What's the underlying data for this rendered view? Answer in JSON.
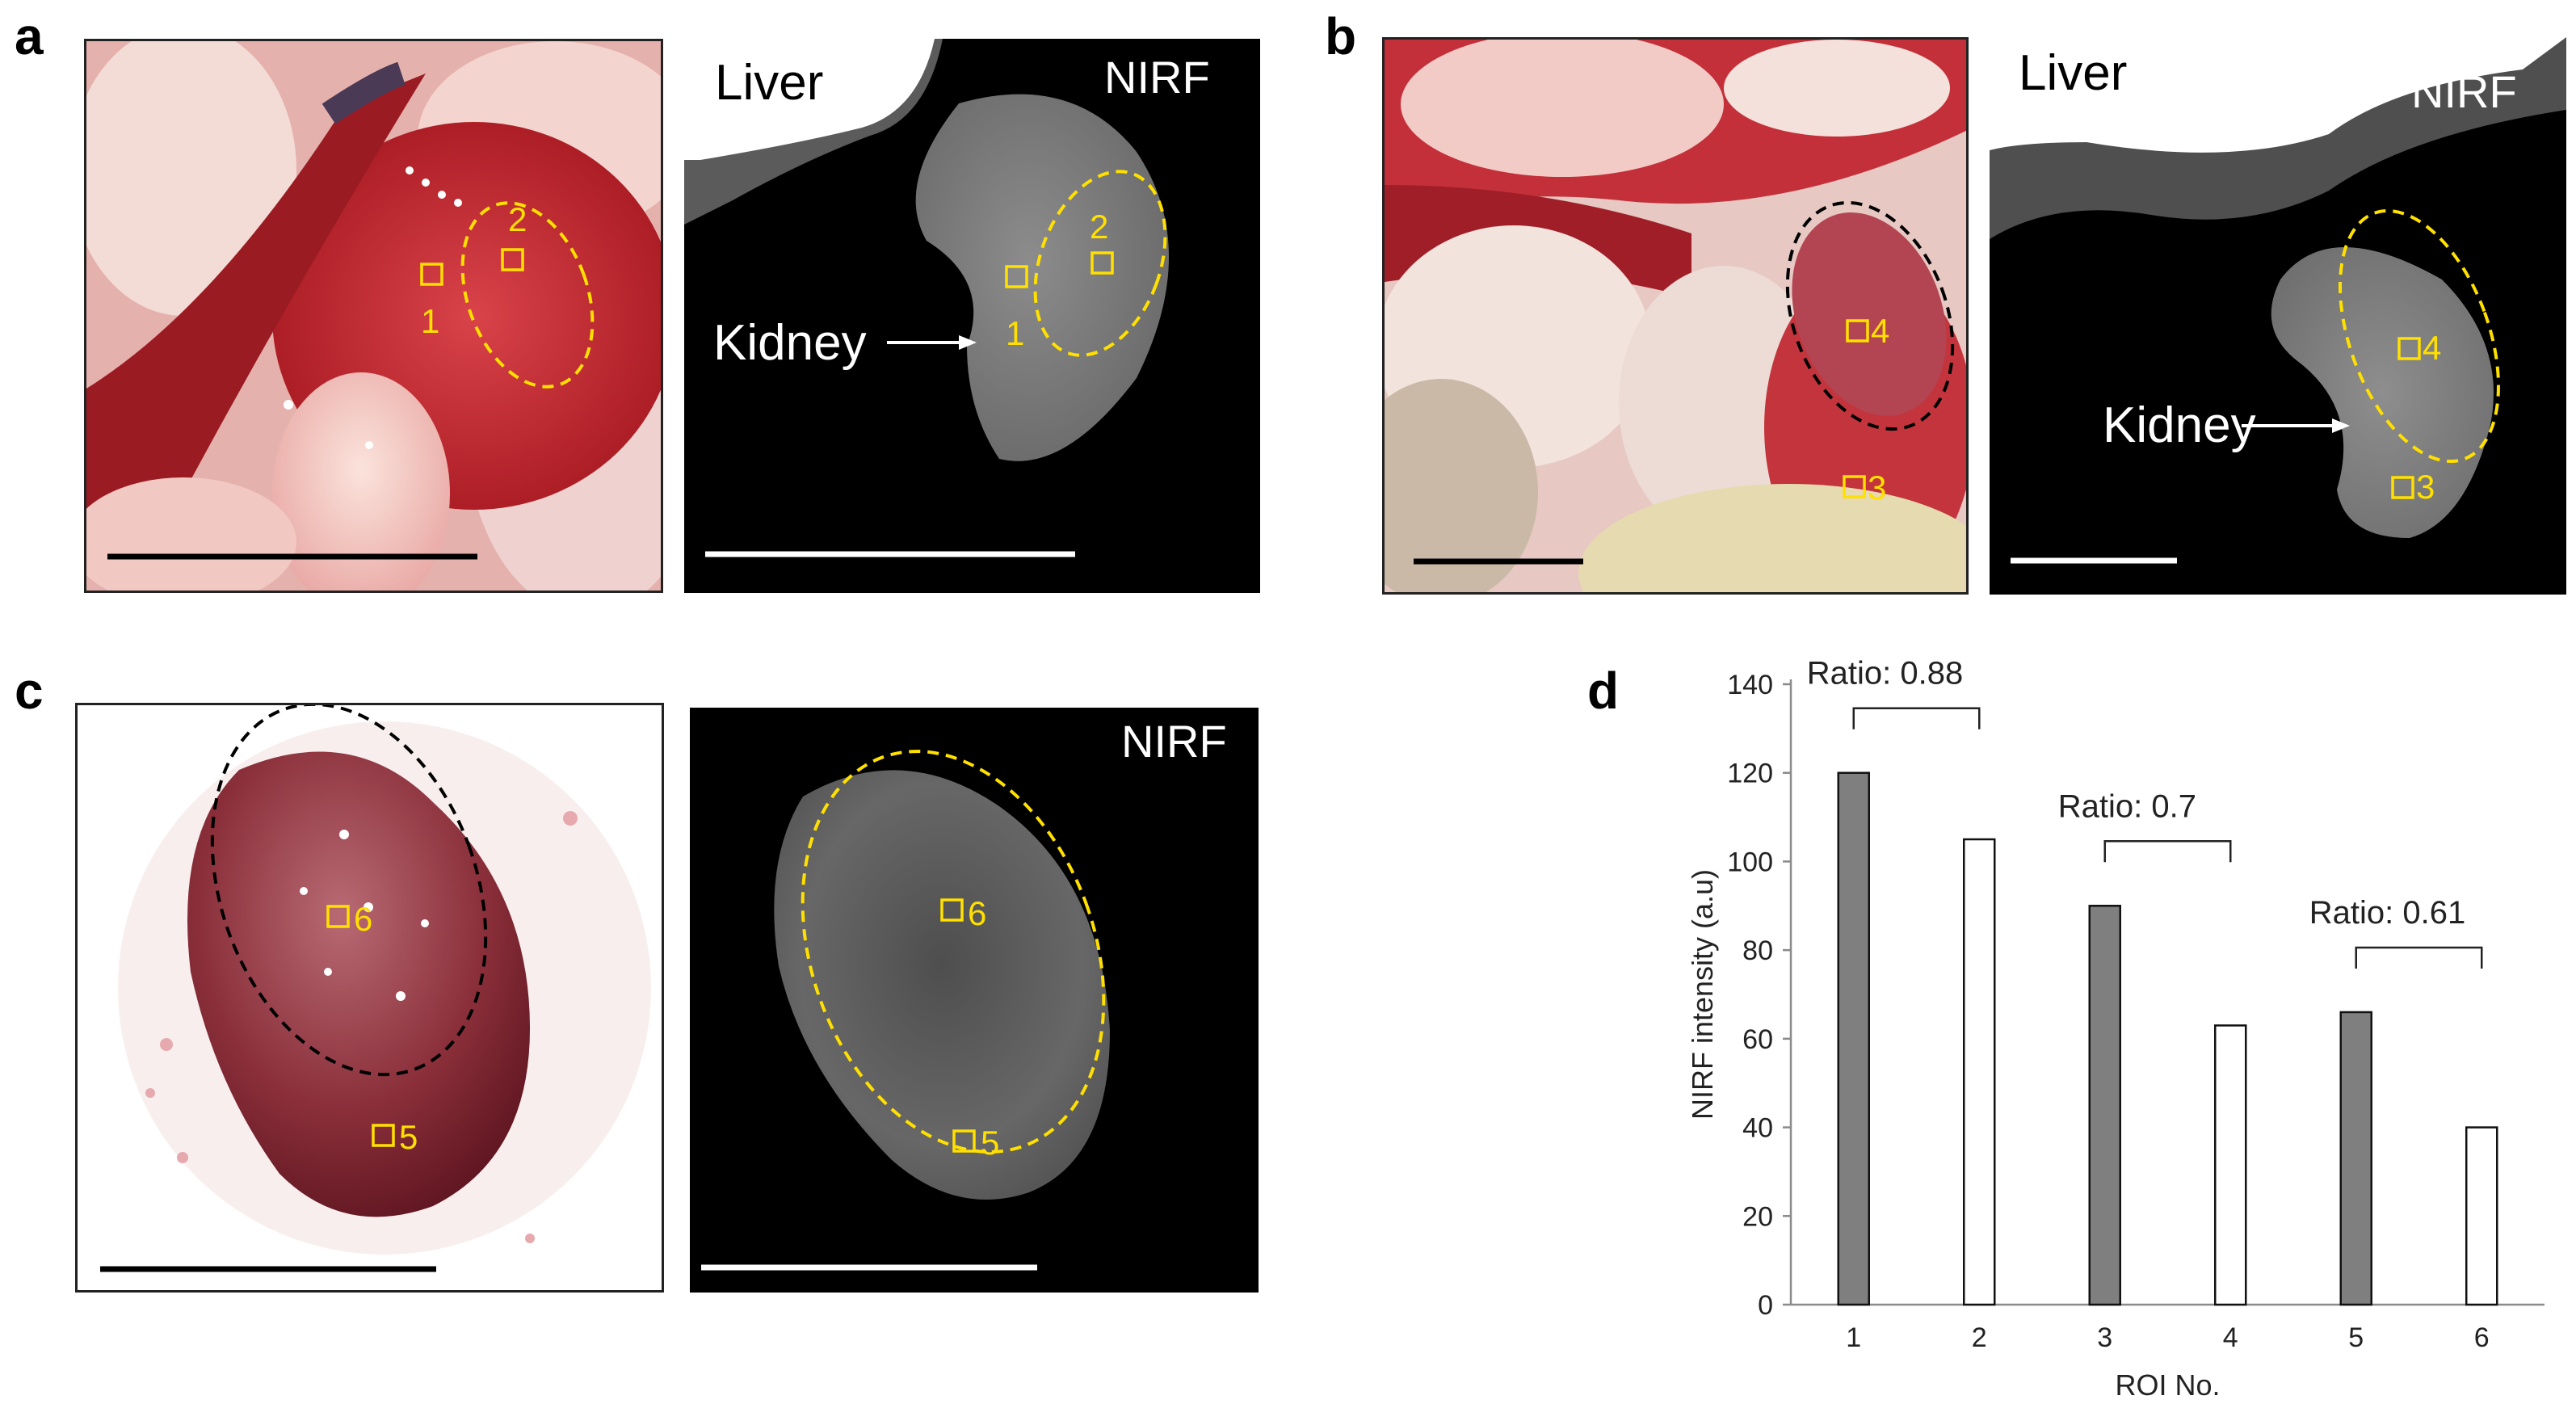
{
  "panels": {
    "a": {
      "letter": "a",
      "photo": {
        "roi_labels": [
          "1",
          "2"
        ]
      },
      "nirf": {
        "title": "NIRF",
        "liver_label": "Liver",
        "kidney_label": "Kidney",
        "roi_labels": [
          "1",
          "2"
        ]
      }
    },
    "b": {
      "letter": "b",
      "photo": {
        "roi_labels": [
          "4",
          "3"
        ]
      },
      "nirf": {
        "title": "NIRF",
        "liver_label": "Liver",
        "kidney_label": "Kidney",
        "roi_labels": [
          "4",
          "3"
        ]
      }
    },
    "c": {
      "letter": "c",
      "photo": {
        "roi_labels": [
          "6",
          "5"
        ]
      },
      "nirf": {
        "title": "NIRF",
        "roi_labels": [
          "6",
          "5"
        ]
      }
    },
    "d": {
      "letter": "d"
    }
  },
  "colors": {
    "roi_yellow": "#ffe000",
    "bar_filled": "#7f7f7f",
    "bar_open": "#ffffff"
  },
  "chart_data": {
    "type": "bar",
    "title": "",
    "xlabel": "ROI No.",
    "ylabel": "NIRF intensity (a.u)",
    "categories": [
      "1",
      "2",
      "3",
      "4",
      "5",
      "6"
    ],
    "values": [
      120,
      105,
      90,
      63,
      66,
      40
    ],
    "fills": [
      "filled",
      "open",
      "filled",
      "open",
      "filled",
      "open"
    ],
    "ylim": [
      0,
      140
    ],
    "yticks": [
      0,
      20,
      40,
      60,
      80,
      100,
      120,
      140
    ],
    "grid": false,
    "annotations": [
      {
        "text": "Ratio: 0.88",
        "pair": [
          1,
          2
        ]
      },
      {
        "text": "Ratio: 0.7",
        "pair": [
          3,
          4
        ]
      },
      {
        "text": "Ratio: 0.61",
        "pair": [
          5,
          6
        ]
      }
    ]
  }
}
